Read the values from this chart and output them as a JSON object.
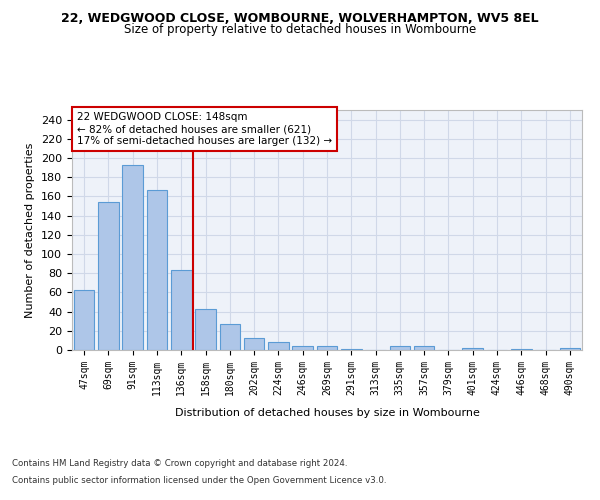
{
  "title1": "22, WEDGWOOD CLOSE, WOMBOURNE, WOLVERHAMPTON, WV5 8EL",
  "title2": "Size of property relative to detached houses in Wombourne",
  "xlabel": "Distribution of detached houses by size in Wombourne",
  "ylabel": "Number of detached properties",
  "footnote1": "Contains HM Land Registry data © Crown copyright and database right 2024.",
  "footnote2": "Contains public sector information licensed under the Open Government Licence v3.0.",
  "annotation_line1": "22 WEDGWOOD CLOSE: 148sqm",
  "annotation_line2": "← 82% of detached houses are smaller (621)",
  "annotation_line3": "17% of semi-detached houses are larger (132) →",
  "categories": [
    "47sqm",
    "69sqm",
    "91sqm",
    "113sqm",
    "136sqm",
    "158sqm",
    "180sqm",
    "202sqm",
    "224sqm",
    "246sqm",
    "269sqm",
    "291sqm",
    "313sqm",
    "335sqm",
    "357sqm",
    "379sqm",
    "401sqm",
    "424sqm",
    "446sqm",
    "468sqm",
    "490sqm"
  ],
  "values": [
    63,
    154,
    193,
    167,
    83,
    43,
    27,
    13,
    8,
    4,
    4,
    1,
    0,
    4,
    4,
    0,
    2,
    0,
    1,
    0,
    2
  ],
  "bar_color": "#aec6e8",
  "bar_edge_color": "#5b9bd5",
  "grid_color": "#d0d8e8",
  "vline_color": "#cc0000",
  "vline_x_index": 4.5,
  "annotation_box_color": "#cc0000",
  "ylim": [
    0,
    250
  ],
  "yticks": [
    0,
    20,
    40,
    60,
    80,
    100,
    120,
    140,
    160,
    180,
    200,
    220,
    240
  ],
  "bg_color": "#eef2f9"
}
